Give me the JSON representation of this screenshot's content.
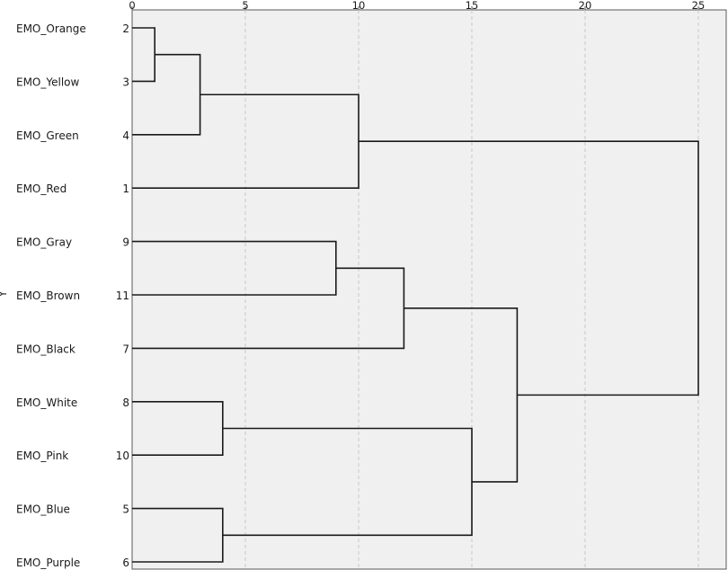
{
  "chart_data": {
    "type": "dendrogram",
    "title": "",
    "xlabel": "",
    "ylabel": "Y",
    "xlim": [
      0,
      25
    ],
    "x_ticks": [
      0,
      5,
      10,
      15,
      20,
      25
    ],
    "x_tick_labels": [
      "0",
      "5",
      "10",
      "15",
      "20",
      "25"
    ],
    "grid": true,
    "leaves": [
      {
        "label": "EMO_Orange",
        "case": "2"
      },
      {
        "label": "EMO_Yellow",
        "case": "3"
      },
      {
        "label": "EMO_Green",
        "case": "4"
      },
      {
        "label": "EMO_Red",
        "case": "1"
      },
      {
        "label": "EMO_Gray",
        "case": "9"
      },
      {
        "label": "EMO_Brown",
        "case": "11"
      },
      {
        "label": "EMO_Black",
        "case": "7"
      },
      {
        "label": "EMO_White",
        "case": "8"
      },
      {
        "label": "EMO_Pink",
        "case": "10"
      },
      {
        "label": "EMO_Blue",
        "case": "5"
      },
      {
        "label": "EMO_Purple",
        "case": "6"
      }
    ],
    "merges": [
      {
        "id": "m1",
        "a": 0,
        "b": 1,
        "distance": 1
      },
      {
        "id": "m2",
        "a": "m1",
        "b": 2,
        "distance": 3
      },
      {
        "id": "m3",
        "a": "m2",
        "b": 3,
        "distance": 10
      },
      {
        "id": "m4",
        "a": 4,
        "b": 5,
        "distance": 9
      },
      {
        "id": "m5",
        "a": "m4",
        "b": 6,
        "distance": 12
      },
      {
        "id": "m6",
        "a": 7,
        "b": 8,
        "distance": 4
      },
      {
        "id": "m7",
        "a": 9,
        "b": 10,
        "distance": 4
      },
      {
        "id": "m8",
        "a": "m6",
        "b": "m7",
        "distance": 15
      },
      {
        "id": "m9",
        "a": "m5",
        "b": "m8",
        "distance": 17
      },
      {
        "id": "m10",
        "a": "m3",
        "b": "m9",
        "distance": 25
      }
    ],
    "colors": {
      "plot_background": "#f0f0f0",
      "plot_border": "#5a5a5a",
      "grid": "#c8c8c8",
      "link": "#1a1a1a",
      "text": "#1a1a1a"
    }
  }
}
